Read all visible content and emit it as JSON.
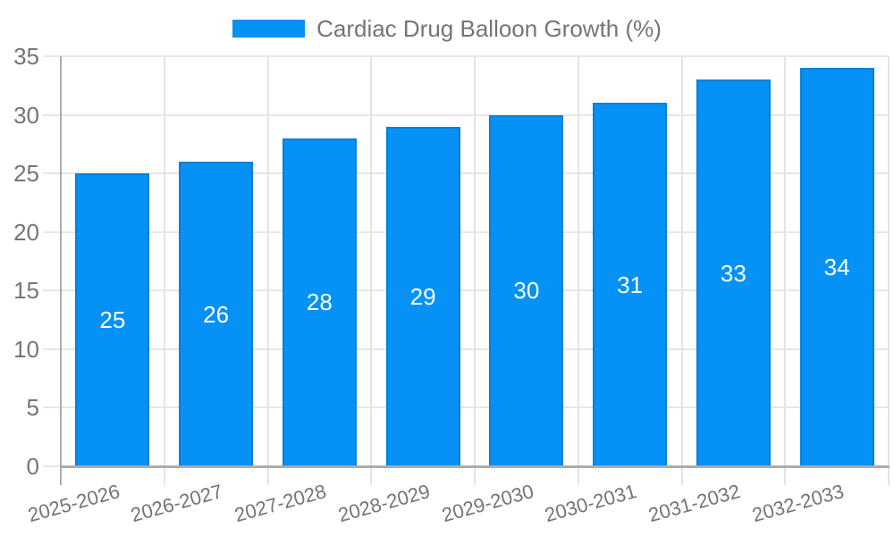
{
  "legend": {
    "title": "Cardiac Drug Balloon Growth (%)"
  },
  "chart_data": {
    "type": "bar",
    "title": "Cardiac Drug Balloon Growth (%)",
    "categories": [
      "2025-2026",
      "2026-2027",
      "2027-2028",
      "2028-2029",
      "2029-2030",
      "2030-2031",
      "2031-2032",
      "2032-2033"
    ],
    "values": [
      25,
      26,
      28,
      29,
      30,
      31,
      33,
      34
    ],
    "xlabel": "",
    "ylabel": "",
    "ylim": [
      0,
      35
    ],
    "yticks": [
      0,
      5,
      10,
      15,
      20,
      25,
      30,
      35
    ],
    "grid": true,
    "legend_position": "top",
    "bar_labels_inside": true,
    "colors": {
      "bar": "#0591F5",
      "bar_border": "#0680D8",
      "value_label": "#FFFFFF",
      "axis_text": "#757575",
      "grid_line": "#E6E6E6",
      "axis_line": "#ACACAC"
    }
  }
}
